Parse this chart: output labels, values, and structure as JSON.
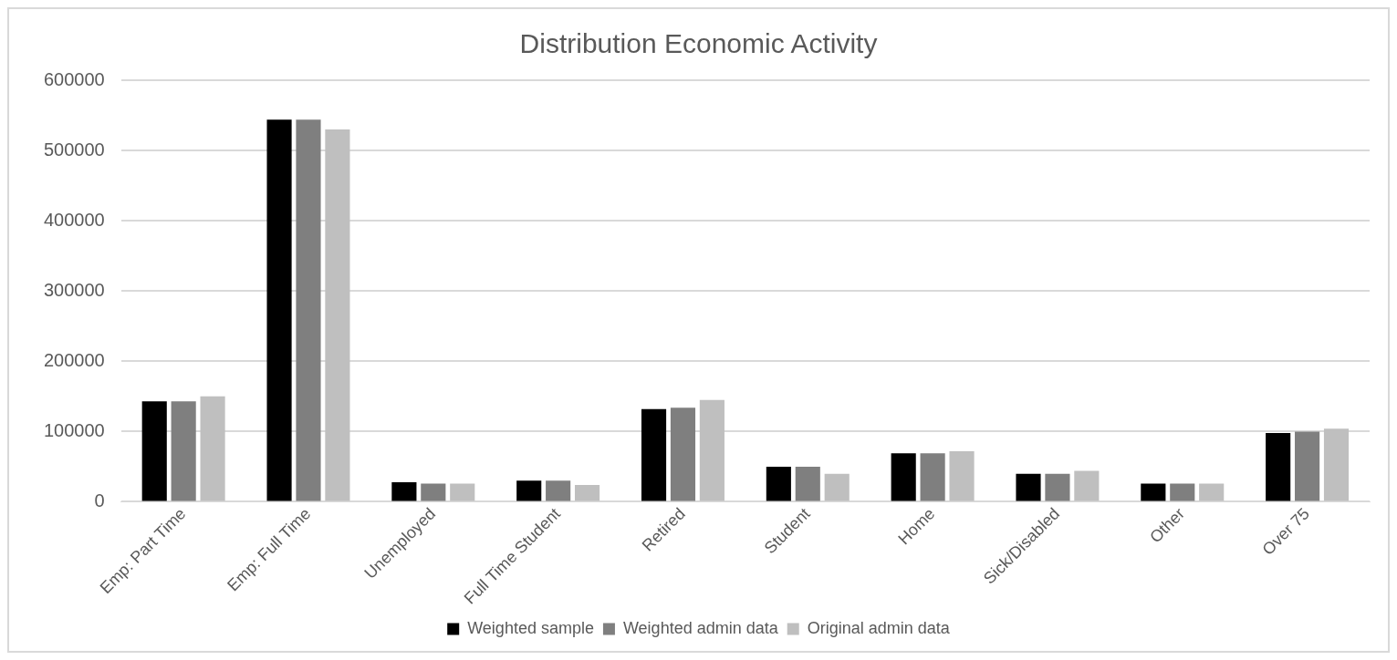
{
  "chart_data": {
    "type": "bar",
    "title": "Distribution Economic Activity",
    "categories": [
      "Emp: Part Time",
      "Emp: Full Time",
      "Unemployed",
      "Full Time Student",
      "Retired",
      "Student",
      "Home",
      "Sick/Disabled",
      "Other",
      "Over 75"
    ],
    "series": [
      {
        "name": "Weighted sample",
        "color": "#000000",
        "values": [
          143000,
          544000,
          28000,
          30000,
          132000,
          50000,
          69000,
          40000,
          26000,
          98000
        ]
      },
      {
        "name": "Weighted admin data",
        "color": "#7f7f7f",
        "values": [
          143000,
          544000,
          26000,
          30000,
          134000,
          50000,
          69000,
          40000,
          26000,
          100000
        ]
      },
      {
        "name": "Original admin data",
        "color": "#bfbfbf",
        "values": [
          150000,
          530000,
          26000,
          24000,
          145000,
          40000,
          72000,
          44000,
          26000,
          104000
        ]
      }
    ],
    "ylim": [
      0,
      600000
    ],
    "yticks": [
      0,
      100000,
      200000,
      300000,
      400000,
      500000,
      600000
    ],
    "grid": "y",
    "legend": "bottom"
  }
}
